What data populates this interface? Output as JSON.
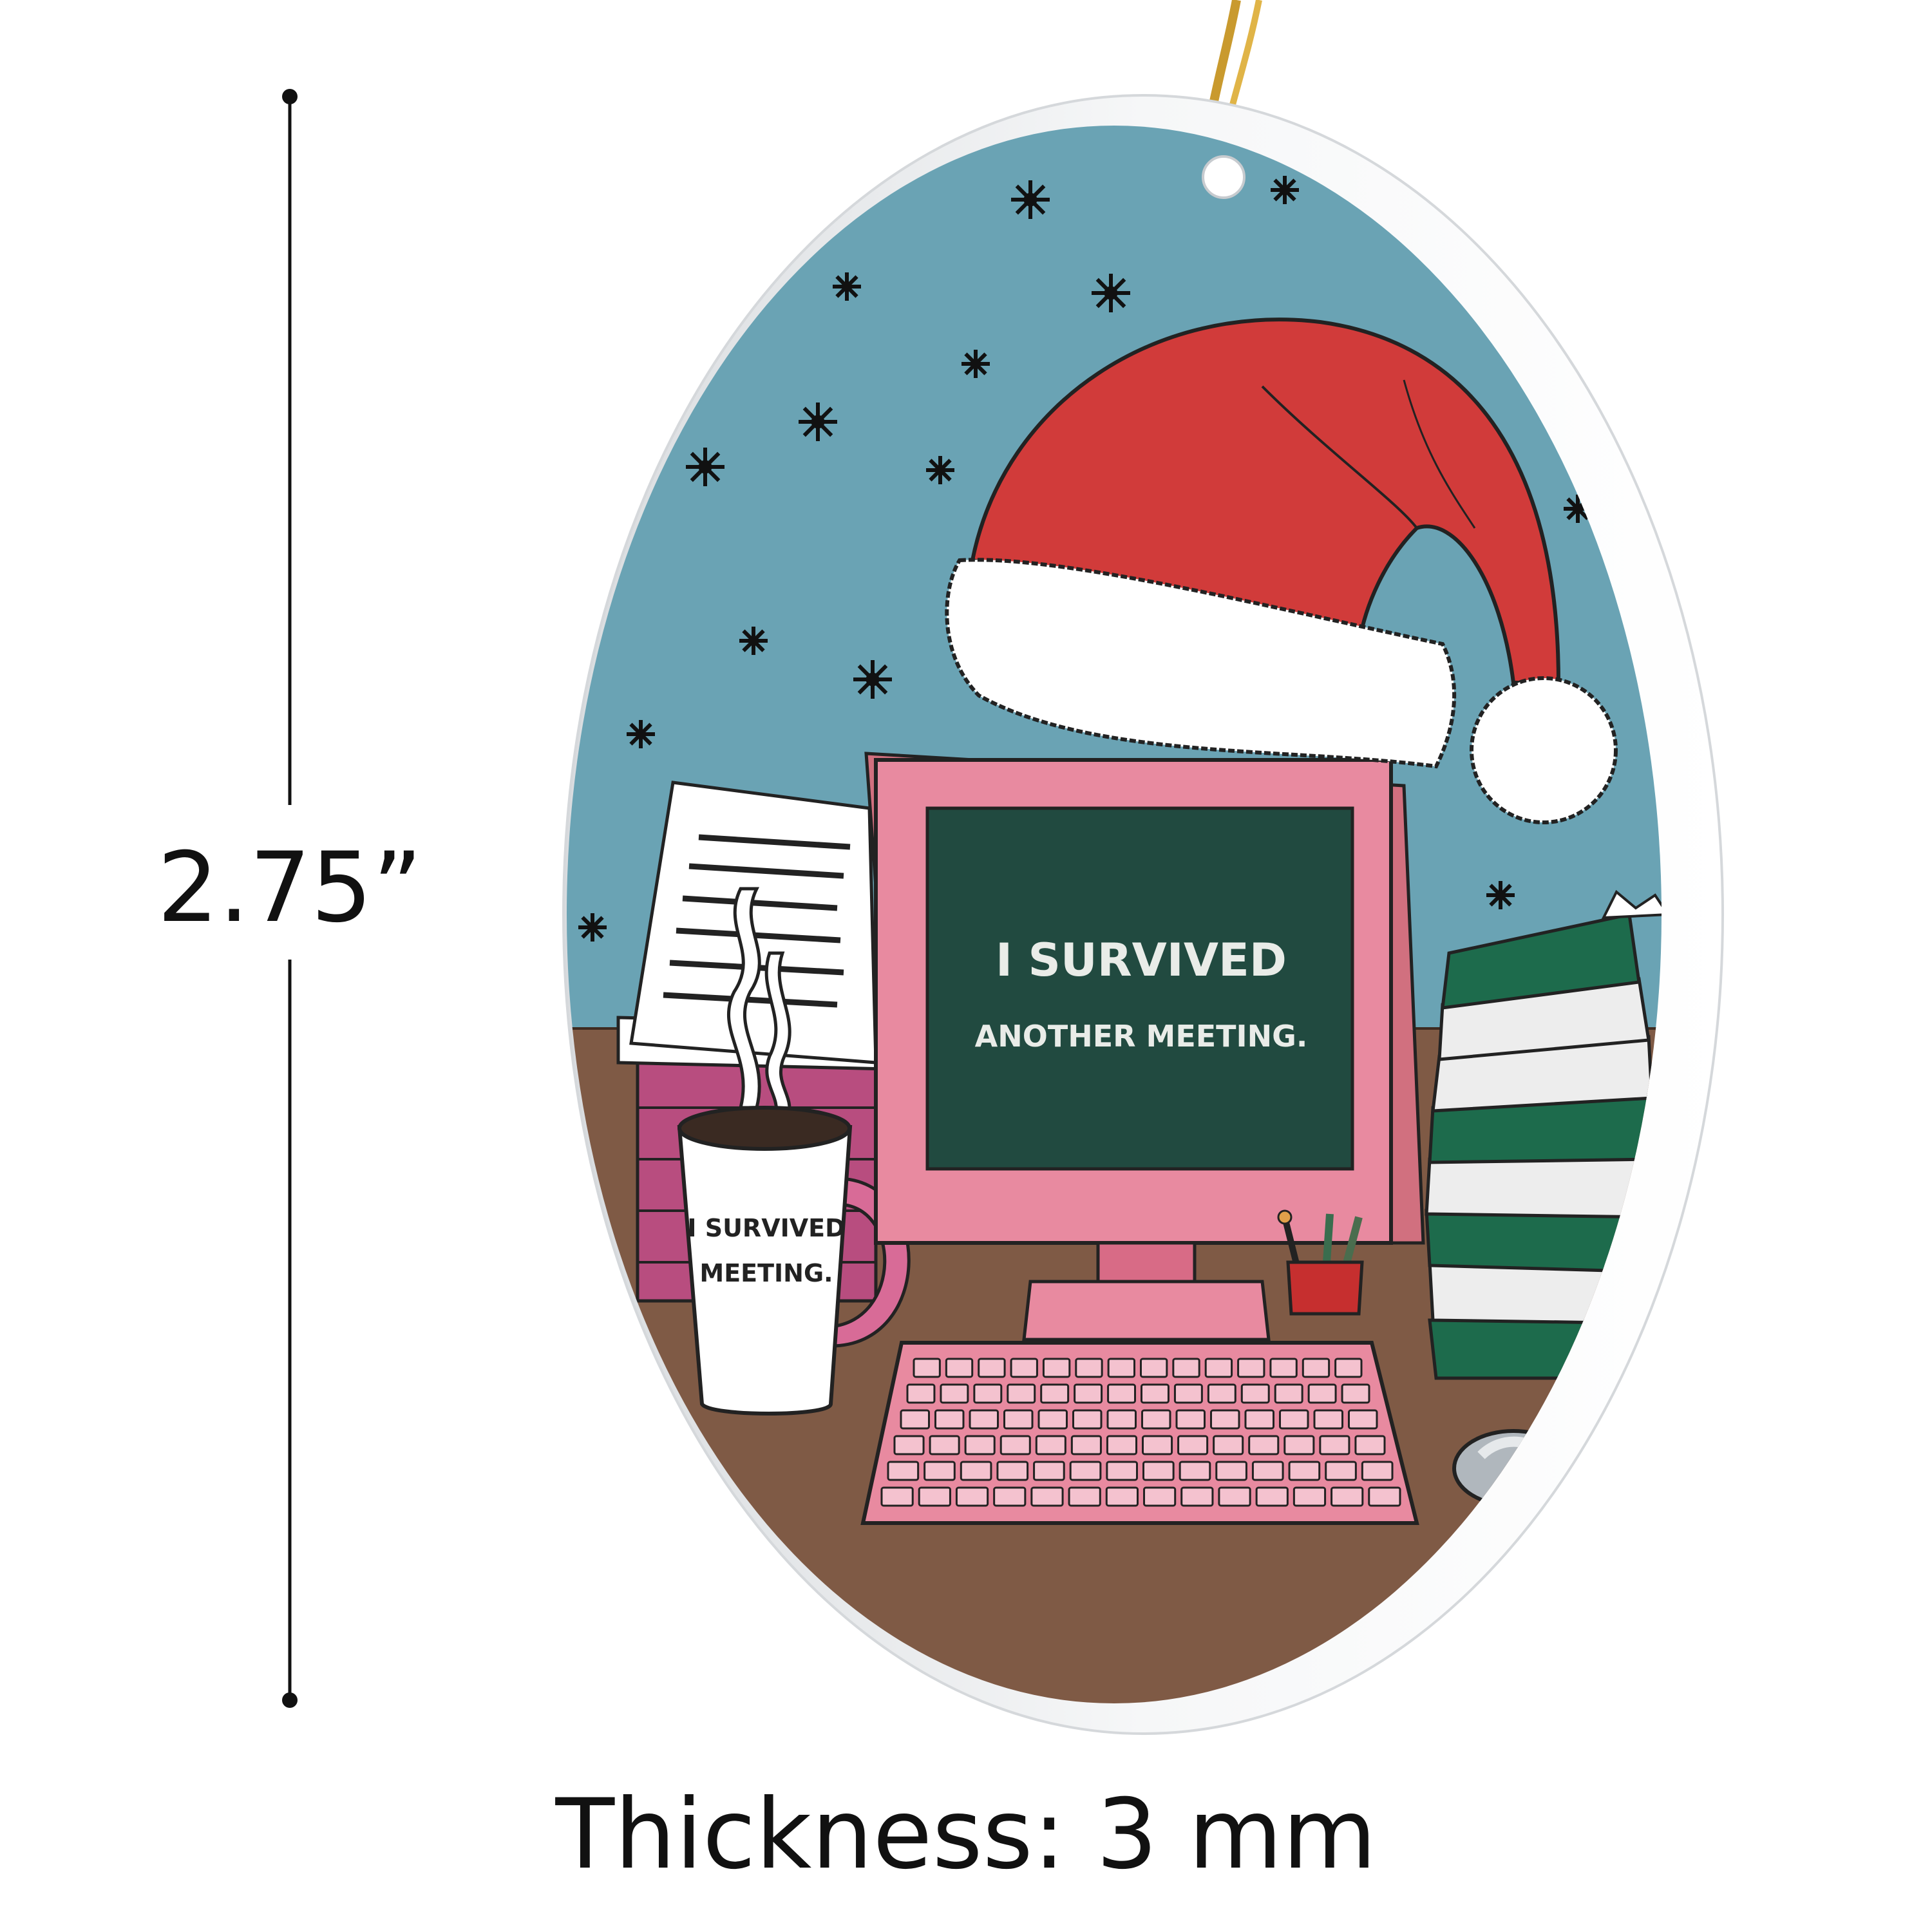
{
  "dimensions": {
    "height_label": "2.75”",
    "thickness_label": "Thickness: 3 mm"
  },
  "monitor": {
    "line1": "I SURVIVED",
    "line2": "ANOTHER MEETING."
  },
  "mug": {
    "line1": "I SURVIVED",
    "line2": "MEETING."
  },
  "colors": {
    "sky": "#6aa3b4",
    "desk": "#7f5a45",
    "hat_red": "#d13b3a",
    "fur_white": "#ffffff",
    "monitor_pink": "#e68aa0",
    "screen_green": "#214a40",
    "folder_green": "#1d6b4c",
    "rim": "#eceef0"
  }
}
